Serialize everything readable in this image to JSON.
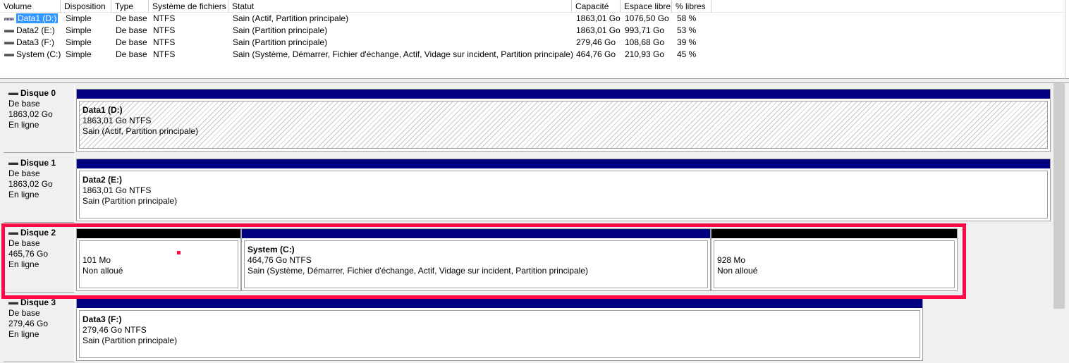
{
  "columns": [
    "Volume",
    "Disposition",
    "Type",
    "Système de fichiers",
    "Statut",
    "Capacité",
    "Espace libre",
    "% libres"
  ],
  "volumes": [
    {
      "name": "Data1 (D:)",
      "layout": "Simple",
      "type": "De base",
      "fs": "NTFS",
      "status": "Sain (Actif, Partition principale)",
      "capacity": "1863,01 Go",
      "free": "1076,50 Go",
      "pct": "58 %",
      "selected": true
    },
    {
      "name": "Data2 (E:)",
      "layout": "Simple",
      "type": "De base",
      "fs": "NTFS",
      "status": "Sain (Partition principale)",
      "capacity": "1863,01 Go",
      "free": "993,71 Go",
      "pct": "53 %"
    },
    {
      "name": "Data3 (F:)",
      "layout": "Simple",
      "type": "De base",
      "fs": "NTFS",
      "status": "Sain (Partition principale)",
      "capacity": "279,46 Go",
      "free": "108,68 Go",
      "pct": "39 %"
    },
    {
      "name": "System (C:)",
      "layout": "Simple",
      "type": "De base",
      "fs": "NTFS",
      "status": "Sain (Système, Démarrer, Fichier d'échange, Actif, Vidage sur incident, Partition principale)",
      "capacity": "464,76 Go",
      "free": "210,93 Go",
      "pct": "45 %"
    }
  ],
  "disks": [
    {
      "name": "Disque 0",
      "type": "De base",
      "size": "1863,02 Go",
      "state": "En ligne",
      "partitions": [
        {
          "title": "Data1  (D:)",
          "size": "1863,01 Go NTFS",
          "status": "Sain (Actif, Partition principale)"
        }
      ]
    },
    {
      "name": "Disque 1",
      "type": "De base",
      "size": "1863,02 Go",
      "state": "En ligne",
      "partitions": [
        {
          "title": "Data2  (E:)",
          "size": "1863,01 Go NTFS",
          "status": "Sain (Partition principale)"
        }
      ]
    },
    {
      "name": "Disque 2",
      "type": "De base",
      "size": "465,76 Go",
      "state": "En ligne",
      "partitions": [
        {
          "size": "101 Mo",
          "status": "Non alloué"
        },
        {
          "title": "System  (C:)",
          "size": "464,76 Go NTFS",
          "status": "Sain (Système, Démarrer, Fichier d'échange, Actif, Vidage sur incident, Partition principale)"
        },
        {
          "size": "928 Mo",
          "status": "Non alloué"
        }
      ]
    },
    {
      "name": "Disque 3",
      "type": "De base",
      "size": "279,46 Go",
      "state": "En ligne",
      "partitions": [
        {
          "title": "Data3  (F:)",
          "size": "279,46 Go NTFS",
          "status": "Sain (Partition principale)"
        }
      ]
    }
  ],
  "colors": {
    "primary_partition": "#000080",
    "unallocated": "#000000",
    "highlight": "#ff0a47"
  }
}
